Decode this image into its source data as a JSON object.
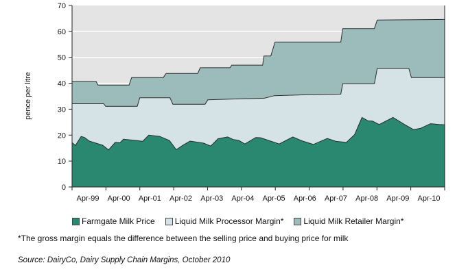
{
  "chart_data": {
    "type": "area",
    "stacked": true,
    "note_on_values": "series values are cumulative top boundaries (pence per litre); x is months from chart start",
    "ylabel": "pence per litre",
    "ylim": [
      0,
      70
    ],
    "yticks": [
      0,
      10,
      20,
      30,
      40,
      50,
      60,
      70
    ],
    "xlim": [
      0,
      132
    ],
    "xtick_labels": [
      "Apr-99",
      "Apr-00",
      "Apr-01",
      "Apr-02",
      "Apr-03",
      "Apr-04",
      "Apr-05",
      "Apr-06",
      "Apr-07",
      "Apr-08",
      "Apr-09",
      "Apr-10"
    ],
    "grid": true,
    "legend_position": "bottom",
    "series": [
      {
        "name": "Liquid Milk Retailer Margin*",
        "color": "#9bbcbb",
        "points": [
          [
            0,
            40.7
          ],
          [
            8.5,
            40.7
          ],
          [
            9.2,
            39.3
          ],
          [
            20.2,
            39.3
          ],
          [
            21.1,
            42.2
          ],
          [
            32.3,
            42.2
          ],
          [
            33.3,
            43.8
          ],
          [
            44.5,
            43.8
          ],
          [
            45.4,
            46.0
          ],
          [
            55.9,
            46.0
          ],
          [
            56.6,
            47.0
          ],
          [
            67.5,
            47.0
          ],
          [
            68,
            50.5
          ],
          [
            70.4,
            50.5
          ],
          [
            71.9,
            55.9
          ],
          [
            95.2,
            55.9
          ],
          [
            95.9,
            61.1
          ],
          [
            107.1,
            61.1
          ],
          [
            108.1,
            64.4
          ],
          [
            132,
            64.6
          ]
        ]
      },
      {
        "name": "Liquid Milk Processor Margin*",
        "color": "#d6e3e6",
        "points": [
          [
            0,
            32.1
          ],
          [
            11.2,
            32.1
          ],
          [
            11.9,
            31.1
          ],
          [
            23.1,
            31.1
          ],
          [
            24,
            34.4
          ],
          [
            34.7,
            34.4
          ],
          [
            35.7,
            31.9
          ],
          [
            47.1,
            31.9
          ],
          [
            48.1,
            33.6
          ],
          [
            59.5,
            34.0
          ],
          [
            68,
            34.2
          ],
          [
            71.7,
            35.2
          ],
          [
            83.8,
            35.6
          ],
          [
            95.2,
            35.8
          ],
          [
            95.9,
            39.8
          ],
          [
            107.1,
            39.8
          ],
          [
            108.1,
            45.7
          ],
          [
            119.3,
            45.7
          ],
          [
            120.2,
            42.2
          ],
          [
            132,
            42.2
          ]
        ]
      },
      {
        "name": "Farmgate Milk Price",
        "color": "#2b8870",
        "points": [
          [
            0,
            17.1
          ],
          [
            1.2,
            16.0
          ],
          [
            3.2,
            19.5
          ],
          [
            4.4,
            19.1
          ],
          [
            6.1,
            17.7
          ],
          [
            10.9,
            16.1
          ],
          [
            12.9,
            14.3
          ],
          [
            15.3,
            17.2
          ],
          [
            17,
            17.1
          ],
          [
            18.2,
            18.4
          ],
          [
            23.1,
            17.9
          ],
          [
            25,
            17.6
          ],
          [
            27.2,
            20.0
          ],
          [
            31.1,
            19.5
          ],
          [
            34.5,
            17.9
          ],
          [
            36.9,
            14.4
          ],
          [
            39.4,
            16.2
          ],
          [
            41.8,
            17.7
          ],
          [
            46.6,
            16.9
          ],
          [
            49.1,
            15.8
          ],
          [
            51.7,
            18.6
          ],
          [
            55.1,
            19.3
          ],
          [
            57.1,
            18.3
          ],
          [
            59,
            18.0
          ],
          [
            61.2,
            16.6
          ],
          [
            65.1,
            19.1
          ],
          [
            66.8,
            19.0
          ],
          [
            70,
            17.8
          ],
          [
            73.4,
            16.6
          ],
          [
            78.2,
            19.3
          ],
          [
            81.4,
            17.8
          ],
          [
            85.5,
            16.4
          ],
          [
            90.4,
            18.7
          ],
          [
            93.5,
            17.6
          ],
          [
            97.2,
            17.2
          ],
          [
            100.1,
            20.2
          ],
          [
            102.7,
            26.8
          ],
          [
            104.9,
            25.5
          ],
          [
            106.4,
            25.4
          ],
          [
            108.8,
            24.1
          ],
          [
            113.7,
            26.8
          ],
          [
            117.8,
            24.1
          ],
          [
            121,
            22.1
          ],
          [
            123.4,
            22.6
          ],
          [
            127,
            24.4
          ],
          [
            130,
            24.1
          ],
          [
            132,
            24.0
          ]
        ]
      }
    ],
    "background_color": "#e4e4e4"
  },
  "legend": {
    "items": [
      {
        "label": "Farmgate Milk Price",
        "color": "#2b8870"
      },
      {
        "label": "Liquid Milk Processor Margin*",
        "color": "#d6e3e6"
      },
      {
        "label": "Liquid Milk Retailer Margin*",
        "color": "#9bbcbb"
      }
    ]
  },
  "footnote": "*The gross margin equals the difference between the selling price and buying price for milk",
  "source": "Source: DairyCo, Dairy Supply Chain Margins, October 2010"
}
